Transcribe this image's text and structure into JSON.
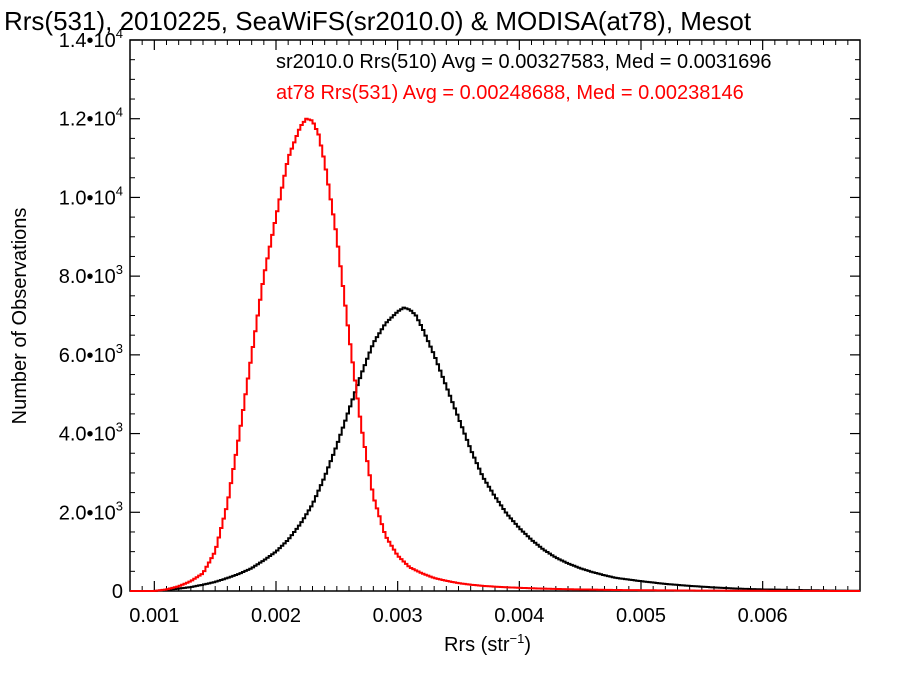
{
  "chart_data": {
    "type": "line",
    "title": "Rrs(531), 2010225, SeaWiFS(sr2010.0) & MODISA(at78), Mesot",
    "xlabel": "Rrs (str",
    "xlabel_sup": "−1",
    "xlabel_close": ")",
    "ylabel": "Number of Observations",
    "xlim": [
      0.0008,
      0.0068
    ],
    "ylim": [
      0,
      14000
    ],
    "grid": false,
    "x_ticks": [
      {
        "value": 0.001,
        "label": "0.001"
      },
      {
        "value": 0.002,
        "label": "0.002"
      },
      {
        "value": 0.003,
        "label": "0.003"
      },
      {
        "value": 0.004,
        "label": "0.004"
      },
      {
        "value": 0.005,
        "label": "0.005"
      },
      {
        "value": 0.006,
        "label": "0.006"
      }
    ],
    "y_ticks": [
      {
        "value": 0,
        "mant": "0",
        "exp": ""
      },
      {
        "value": 2000,
        "mant": "2.0•10",
        "exp": "3"
      },
      {
        "value": 4000,
        "mant": "4.0•10",
        "exp": "3"
      },
      {
        "value": 6000,
        "mant": "6.0•10",
        "exp": "3"
      },
      {
        "value": 8000,
        "mant": "8.0•10",
        "exp": "3"
      },
      {
        "value": 10000,
        "mant": "1.0•10",
        "exp": "4"
      },
      {
        "value": 12000,
        "mant": "1.2•10",
        "exp": "4"
      },
      {
        "value": 14000,
        "mant": "1.4•10",
        "exp": "4"
      }
    ],
    "annotations": [
      {
        "text": "sr2010.0 Rrs(510) Avg = 0.00327583, Med = 0.0031696",
        "color": "#000000"
      },
      {
        "text": "at78 Rrs(531) Avg = 0.00248688, Med = 0.00238146",
        "color": "#ff0000"
      }
    ],
    "series": [
      {
        "color": "#000000",
        "x": [
          0.0008,
          0.001,
          0.0011,
          0.0012,
          0.0013,
          0.0014,
          0.0015,
          0.0016,
          0.0017,
          0.0018,
          0.0019,
          0.002,
          0.0021,
          0.0022,
          0.0023,
          0.0024,
          0.0025,
          0.0026,
          0.0027,
          0.0028,
          0.0029,
          0.003,
          0.00305,
          0.0031,
          0.00315,
          0.0032,
          0.0033,
          0.0034,
          0.0035,
          0.0036,
          0.0037,
          0.0038,
          0.0039,
          0.004,
          0.0041,
          0.0042,
          0.0043,
          0.0044,
          0.0045,
          0.0046,
          0.0047,
          0.0048,
          0.005,
          0.0052,
          0.0054,
          0.0056,
          0.0058,
          0.006,
          0.0062,
          0.0064,
          0.0066,
          0.0068
        ],
        "y": [
          0,
          0,
          30,
          60,
          100,
          160,
          230,
          330,
          440,
          580,
          780,
          1000,
          1300,
          1700,
          2200,
          2900,
          3700,
          4600,
          5500,
          6300,
          6800,
          7100,
          7200,
          7150,
          7000,
          6700,
          6000,
          5200,
          4400,
          3600,
          2900,
          2400,
          1950,
          1600,
          1300,
          1050,
          850,
          700,
          580,
          480,
          400,
          330,
          250,
          180,
          130,
          90,
          60,
          40,
          30,
          20,
          10,
          5
        ]
      },
      {
        "color": "#ff0000",
        "x": [
          0.0008,
          0.001,
          0.0011,
          0.0012,
          0.0013,
          0.0014,
          0.0015,
          0.0016,
          0.0017,
          0.0018,
          0.0019,
          0.002,
          0.0021,
          0.0022,
          0.00225,
          0.0023,
          0.00235,
          0.0024,
          0.0025,
          0.0026,
          0.0027,
          0.0028,
          0.0029,
          0.003,
          0.0031,
          0.0032,
          0.0033,
          0.0034,
          0.0035,
          0.0036,
          0.0037,
          0.0038,
          0.004,
          0.0042,
          0.0044,
          0.0046,
          0.0048,
          0.005,
          0.0055,
          0.006,
          0.0065,
          0.0068
        ],
        "y": [
          0,
          0,
          40,
          120,
          250,
          450,
          1000,
          2200,
          4000,
          6000,
          8000,
          9500,
          11000,
          11800,
          12000,
          11950,
          11600,
          10900,
          9000,
          6500,
          4200,
          2400,
          1400,
          900,
          600,
          450,
          330,
          260,
          200,
          160,
          130,
          110,
          80,
          60,
          45,
          35,
          25,
          20,
          10,
          5,
          2,
          0
        ]
      }
    ]
  }
}
